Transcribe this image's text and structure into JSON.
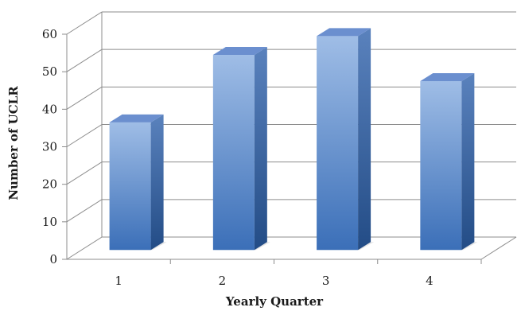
{
  "chart_data": {
    "type": "bar",
    "categories": [
      "1",
      "2",
      "3",
      "4"
    ],
    "values": [
      34,
      52,
      57,
      45
    ],
    "title": "",
    "xlabel": "Yearly Quarter",
    "ylabel": "Number of UCLR",
    "ylim": [
      0,
      60
    ],
    "yticks": [
      "0",
      "10",
      "20",
      "30",
      "40",
      "50",
      "60"
    ],
    "grid": true,
    "style": "3d-column",
    "colors": {
      "bar_front_top": "#9fbde6",
      "bar_front_bottom": "#3b6fb8",
      "bar_side_top": "#5a82bd",
      "bar_side_bottom": "#234c86",
      "bar_top": "#6b8fcf",
      "gridline": "#8c8c8c",
      "shadow": "#cfcfcf"
    }
  }
}
